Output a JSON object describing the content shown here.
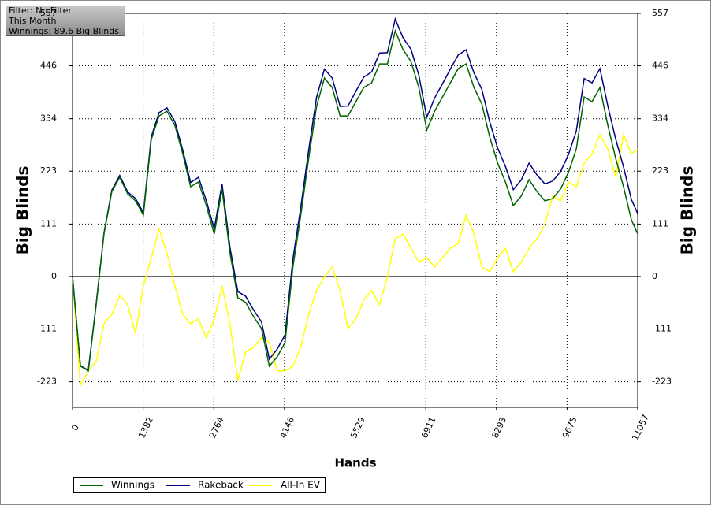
{
  "chart_data": {
    "type": "line",
    "info_box": [
      "Filter: No Filter",
      "This Month",
      "Winnings: 89.6 Big Blinds"
    ],
    "x_label": "Hands",
    "y_label": "Big Blinds",
    "x": [
      0,
      154,
      308,
      462,
      616,
      770,
      924,
      1078,
      1232,
      1386,
      1540,
      1694,
      1848,
      2002,
      2156,
      2310,
      2464,
      2618,
      2772,
      2926,
      3080,
      3234,
      3388,
      3542,
      3696,
      3850,
      4004,
      4158,
      4312,
      4466,
      4620,
      4774,
      4928,
      5082,
      5236,
      5390,
      5544,
      5698,
      5852,
      6006,
      6160,
      6314,
      6468,
      6622,
      6776,
      6930,
      7084,
      7238,
      7392,
      7546,
      7700,
      7854,
      8008,
      8162,
      8316,
      8470,
      8624,
      8778,
      8932,
      9086,
      9240,
      9394,
      9548,
      9702,
      9856,
      10010,
      10164,
      10318,
      10472,
      10626,
      10780,
      10934,
      11057
    ],
    "series": [
      {
        "name": "Winnings",
        "color": "#006400",
        "values": [
          0,
          -190,
          -200,
          -60,
          90,
          180,
          210,
          175,
          160,
          130,
          290,
          340,
          350,
          320,
          260,
          190,
          200,
          150,
          90,
          185,
          50,
          -45,
          -55,
          -85,
          -110,
          -190,
          -170,
          -140,
          20,
          130,
          250,
          360,
          420,
          400,
          340,
          340,
          370,
          400,
          410,
          450,
          450,
          520,
          480,
          455,
          400,
          310,
          350,
          380,
          410,
          440,
          450,
          400,
          365,
          295,
          240,
          200,
          150,
          170,
          205,
          180,
          160,
          165,
          185,
          220,
          270,
          380,
          370,
          400,
          320,
          250,
          190,
          120,
          90
        ]
      },
      {
        "name": "Rakeback",
        "color": "#000080",
        "values": [
          0,
          -189,
          -199,
          -58,
          92,
          183,
          214,
          179,
          165,
          135,
          296,
          347,
          357,
          328,
          268,
          199,
          210,
          160,
          101,
          196,
          62,
          -32,
          -42,
          -71,
          -96,
          -175,
          -154,
          -124,
          37,
          147,
          268,
          379,
          439,
          420,
          360,
          361,
          392,
          422,
          433,
          473,
          474,
          545,
          505,
          481,
          426,
          337,
          378,
          408,
          439,
          469,
          480,
          431,
          396,
          327,
          272,
          233,
          184,
          204,
          240,
          215,
          196,
          202,
          222,
          258,
          308,
          419,
          410,
          440,
          361,
          291,
          232,
          163,
          133
        ]
      },
      {
        "name": "All-In EV",
        "color": "#ffff00",
        "values": [
          0,
          -230,
          -200,
          -180,
          -100,
          -80,
          -40,
          -60,
          -120,
          -20,
          40,
          100,
          50,
          -20,
          -80,
          -100,
          -90,
          -130,
          -90,
          -20,
          -100,
          -220,
          -160,
          -150,
          -130,
          -140,
          -200,
          -200,
          -190,
          -150,
          -80,
          -30,
          0,
          20,
          -30,
          -110,
          -90,
          -50,
          -30,
          -60,
          0,
          80,
          90,
          60,
          30,
          40,
          20,
          40,
          60,
          70,
          130,
          90,
          20,
          10,
          40,
          60,
          10,
          30,
          60,
          80,
          110,
          170,
          160,
          200,
          190,
          240,
          260,
          300,
          270,
          210,
          300,
          260,
          270
        ]
      }
    ],
    "xlim": [
      0,
      11057
    ],
    "xticks": [
      0,
      1382,
      2764,
      4146,
      5529,
      6911,
      8293,
      9675,
      11057
    ],
    "ylim": [
      -277,
      557
    ],
    "yticks": [
      -223,
      -111,
      0,
      111,
      223,
      334,
      446,
      557
    ],
    "grid": true,
    "legend": "bottom-left"
  }
}
